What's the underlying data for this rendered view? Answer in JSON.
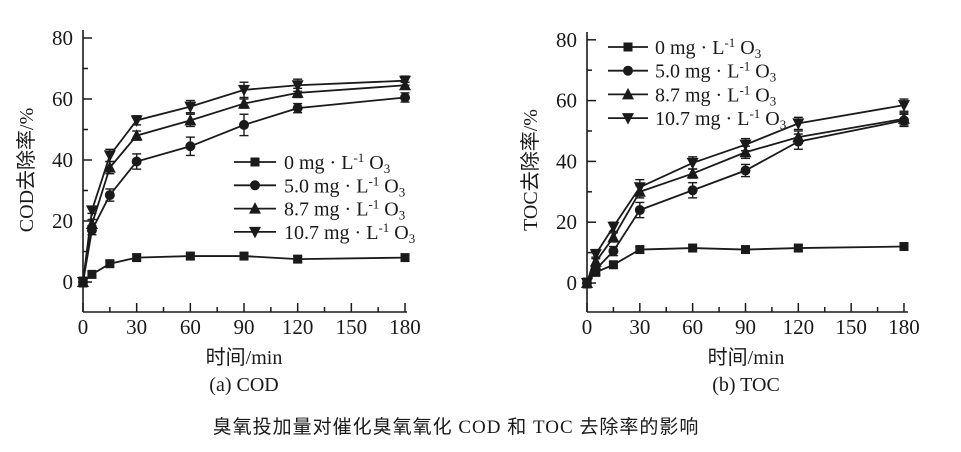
{
  "caption": "臭氧投加量对催化臭氧氧化 COD 和 TOC 去除率的影响",
  "colors": {
    "ink": "#1a1a1a",
    "background": "#ffffff"
  },
  "chart_data": [
    {
      "id": "cod",
      "type": "line",
      "subtitle": "(a) COD",
      "xlabel": "时间/min",
      "ylabel": "COD去除率/%",
      "xlim": [
        0,
        180
      ],
      "ylim": [
        0,
        80
      ],
      "xticks_major": [
        0,
        30,
        60,
        90,
        120,
        150,
        180
      ],
      "xticks_minor_step": 15,
      "yticks_major": [
        0,
        20,
        40,
        60,
        80
      ],
      "yticks_minor_step": 10,
      "grid": false,
      "legend_position": "inside-right-middle",
      "x": [
        0,
        5,
        15,
        30,
        60,
        90,
        120,
        180
      ],
      "series": [
        {
          "name": "0 mg · L⁻¹ O₃",
          "marker": "square",
          "values": [
            0,
            2.5,
            6,
            8,
            8.5,
            8.5,
            7.5,
            8
          ],
          "errors": [
            1.5,
            1,
            1,
            1,
            1,
            1,
            1,
            1
          ]
        },
        {
          "name": "5.0 mg · L⁻¹ O₃",
          "marker": "circle",
          "values": [
            0,
            17,
            28.5,
            39.5,
            44.5,
            51.5,
            57,
            60.5
          ],
          "errors": [
            1.5,
            1.5,
            2,
            2.5,
            3,
            3.5,
            1.5,
            1.5
          ]
        },
        {
          "name": "8.7 mg · L⁻¹ O₃",
          "marker": "triangle-up",
          "values": [
            0,
            19,
            37.5,
            48,
            53,
            58.5,
            62,
            64.5
          ],
          "errors": [
            1.5,
            1.5,
            2,
            1.5,
            2,
            1.5,
            1.5,
            1
          ]
        },
        {
          "name": "10.7 mg · L⁻¹ O₃",
          "marker": "triangle-down",
          "values": [
            0,
            23.5,
            41.5,
            53,
            57.5,
            63,
            64.5,
            66
          ],
          "errors": [
            1.5,
            1,
            2,
            1.5,
            2,
            2.5,
            2,
            1.5
          ]
        }
      ]
    },
    {
      "id": "toc",
      "type": "line",
      "subtitle": "(b) TOC",
      "xlabel": "时间/min",
      "ylabel": "TOC去除率/%",
      "xlim": [
        0,
        180
      ],
      "ylim": [
        0,
        80
      ],
      "xticks_major": [
        0,
        30,
        60,
        90,
        120,
        150,
        180
      ],
      "xticks_minor_step": 15,
      "yticks_major": [
        0,
        20,
        40,
        60,
        80
      ],
      "yticks_minor_step": 10,
      "grid": false,
      "legend_position": "inside-top-left",
      "x": [
        0,
        5,
        15,
        30,
        60,
        90,
        120,
        180
      ],
      "series": [
        {
          "name": "0 mg · L⁻¹ O₃",
          "marker": "square",
          "values": [
            0,
            3.5,
            6,
            11,
            11.5,
            11,
            11.5,
            12
          ],
          "errors": [
            1.5,
            1,
            1,
            1,
            1,
            1,
            1,
            1
          ]
        },
        {
          "name": "5.0 mg · L⁻¹ O₃",
          "marker": "circle",
          "values": [
            0,
            4.5,
            10.5,
            24,
            30.5,
            37,
            46.5,
            53.5
          ],
          "errors": [
            1.5,
            1.5,
            1.5,
            2.5,
            2.5,
            2,
            2.5,
            2
          ]
        },
        {
          "name": "8.7 mg · L⁻¹ O₃",
          "marker": "triangle-up",
          "values": [
            0,
            7,
            15,
            30,
            36,
            43,
            48,
            54
          ],
          "errors": [
            1.5,
            1.5,
            1.5,
            2,
            1.5,
            2,
            2,
            2
          ]
        },
        {
          "name": "10.7 mg · L⁻¹ O₃",
          "marker": "triangle-down",
          "values": [
            0,
            9.5,
            18.5,
            31.5,
            39.5,
            45.5,
            52.5,
            58.5
          ],
          "errors": [
            1.5,
            1.5,
            1.5,
            2.5,
            2,
            2,
            2,
            2
          ]
        }
      ]
    }
  ]
}
